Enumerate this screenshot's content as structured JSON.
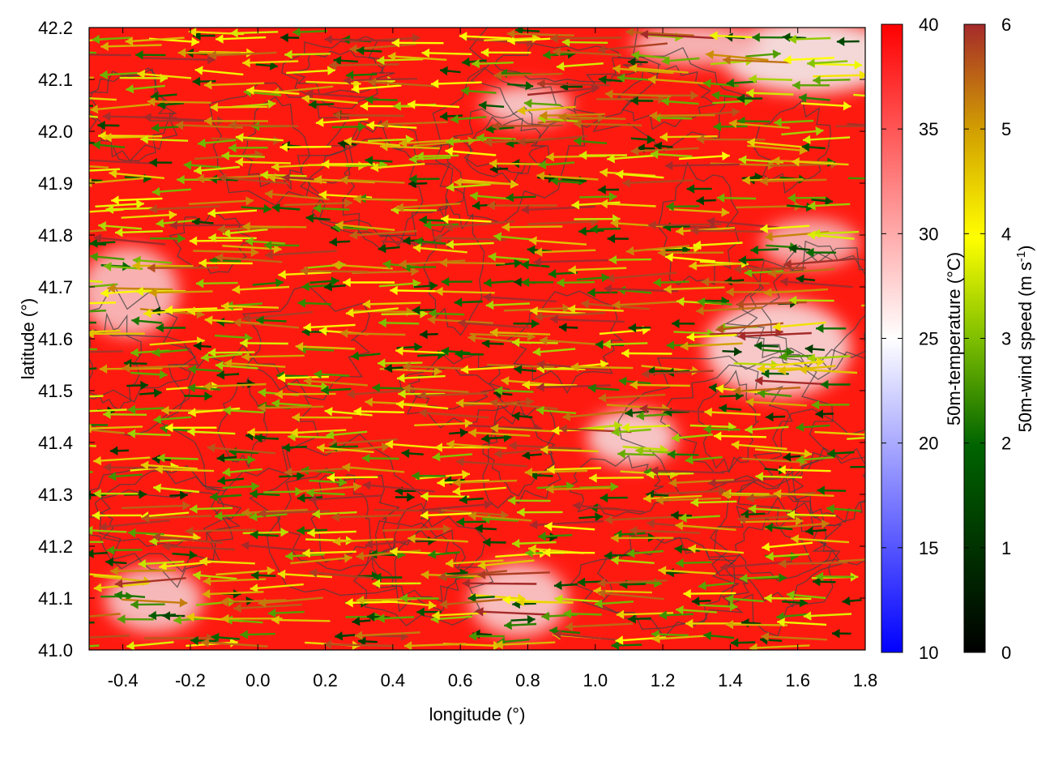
{
  "chart_data": {
    "type": "heatmap",
    "title": "",
    "xlabel": "longitude (°)",
    "ylabel": "latitude (°)",
    "xlim": [
      -0.5,
      1.8
    ],
    "ylim": [
      41.0,
      42.2
    ],
    "xticks": [
      "-0.4",
      "-0.2",
      "0.0",
      "0.2",
      "0.4",
      "0.6",
      "0.8",
      "1.0",
      "1.2",
      "1.4",
      "1.6",
      "1.8"
    ],
    "xtick_values": [
      -0.4,
      -0.2,
      0.0,
      0.2,
      0.4,
      0.6,
      0.8,
      1.0,
      1.2,
      1.4,
      1.6,
      1.8
    ],
    "yticks": [
      "41.0",
      "41.1",
      "41.2",
      "41.3",
      "41.4",
      "41.5",
      "41.6",
      "41.7",
      "41.8",
      "41.9",
      "42.0",
      "42.1",
      "42.2"
    ],
    "ytick_values": [
      41.0,
      41.1,
      41.2,
      41.3,
      41.4,
      41.5,
      41.6,
      41.7,
      41.8,
      41.9,
      42.0,
      42.1,
      42.2
    ],
    "grid": false,
    "colorbars": [
      {
        "label": "50m-temperature (°C)",
        "range": [
          10,
          40
        ],
        "ticks": [
          "10",
          "15",
          "20",
          "25",
          "30",
          "35",
          "40"
        ],
        "tick_values": [
          10,
          15,
          20,
          25,
          30,
          35,
          40
        ],
        "colors": [
          "#0000ff",
          "#ffffff",
          "#ff0000"
        ]
      },
      {
        "label_main": "50m-wind speed (m s",
        "label_sup": "-1",
        "label_end": ")",
        "range": [
          0,
          6
        ],
        "ticks": [
          "0",
          "1",
          "2",
          "3",
          "4",
          "5",
          "6"
        ],
        "tick_values": [
          0,
          1,
          2,
          3,
          4,
          5,
          6
        ],
        "colors": [
          "#000000",
          "#006400",
          "#7fbf00",
          "#ffff00",
          "#d2a000",
          "#a52a2a"
        ]
      }
    ],
    "field_summary": "50m temperature mostly 36–40 °C; cooler (25–30 °C) patches near lat 42.0–42.2, lon 0.9–1.8 and lat 41.45–41.65, lon 1.3–1.8",
    "wind_summary": "prevailing wind from east (arrows pointing west), speeds 0–6 m/s"
  }
}
